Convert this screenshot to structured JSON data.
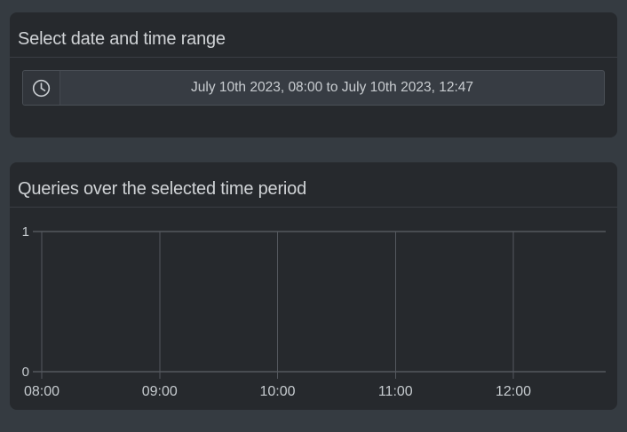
{
  "page": {
    "background": "#353b41"
  },
  "colors": {
    "panel_bg": "#26292d",
    "panel_divider": "#3a3e44",
    "input_bg": "#373c43",
    "input_addon_bg": "#31353b",
    "input_border": "#4a4f56",
    "text_primary": "#d0d3d6",
    "text_secondary": "#c6cbcf",
    "gridline_vertical": "#54585e",
    "gridline_horizontal": "#6a6f75"
  },
  "date_panel": {
    "title": "Select date and time range",
    "datetime_input": {
      "icon": "clock-icon",
      "value": "July 10th 2023, 08:00 to July 10th 2023, 12:47"
    }
  },
  "chart_panel": {
    "title": "Queries over the selected time period"
  },
  "chart_data": {
    "type": "line",
    "title": "Queries over the selected time period",
    "xlabel": "",
    "ylabel": "",
    "x_range": [
      "08:00",
      "12:47"
    ],
    "x_ticks": [
      "08:00",
      "09:00",
      "10:00",
      "11:00",
      "12:00"
    ],
    "ylim": [
      0,
      1
    ],
    "y_ticks": [
      0,
      1
    ],
    "series": [],
    "grid": "on",
    "legend": "none"
  }
}
